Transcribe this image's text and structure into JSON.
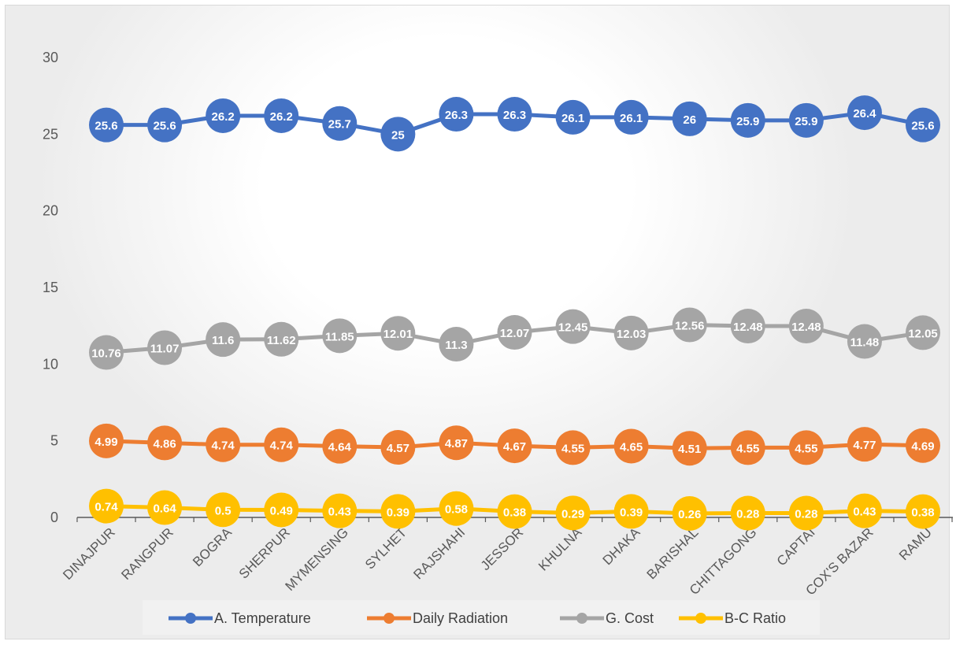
{
  "chart_data": {
    "type": "line",
    "title": "",
    "xlabel": "",
    "ylabel": "",
    "ylim": [
      0,
      30
    ],
    "yticks": [
      0,
      5,
      10,
      15,
      20,
      25,
      30
    ],
    "grid": false,
    "legend_position": "bottom",
    "categories": [
      "DINAJPUR",
      "RANGPUR",
      "BOGRA",
      "SHERPUR",
      "MYMENSING",
      "SYLHET",
      "RAJSHAHI",
      "JESSOR",
      "KHULNA",
      "DHAKA",
      "BARISHAL",
      "CHITTAGONG",
      "CAPTAI",
      "COX'S BAZAR",
      "RAMU"
    ],
    "series": [
      {
        "name": "A. Temperature",
        "color": "#4472C4",
        "labels": [
          "25.6",
          "25.6",
          "26.2",
          "26.2",
          "25.7",
          "25",
          "26.3",
          "26.3",
          "26.1",
          "26.1",
          "26",
          "25.9",
          "25.9",
          "26.4",
          "25.6"
        ],
        "values": [
          25.6,
          25.6,
          26.2,
          26.2,
          25.7,
          25,
          26.3,
          26.3,
          26.1,
          26.1,
          26,
          25.9,
          25.9,
          26.4,
          25.6
        ]
      },
      {
        "name": "Daily Radiation",
        "color": "#ED7D31",
        "labels": [
          "4.99",
          "4.86",
          "4.74",
          "4.74",
          "4.64",
          "4.57",
          "4.87",
          "4.67",
          "4.55",
          "4.65",
          "4.51",
          "4.55",
          "4.55",
          "4.77",
          "4.69"
        ],
        "values": [
          4.99,
          4.86,
          4.74,
          4.74,
          4.64,
          4.57,
          4.87,
          4.67,
          4.55,
          4.65,
          4.51,
          4.55,
          4.55,
          4.77,
          4.69
        ]
      },
      {
        "name": "G. Cost",
        "color": "#A5A5A5",
        "labels": [
          "10.76",
          "11.07",
          "11.6",
          "11.62",
          "11.85",
          "12.01",
          "11.3",
          "12.07",
          "12.45",
          "12.03",
          "12.56",
          "12.48",
          "12.48",
          "11.48",
          "12.05"
        ],
        "values": [
          10.76,
          11.07,
          11.6,
          11.62,
          11.85,
          12.01,
          11.3,
          12.07,
          12.45,
          12.03,
          12.56,
          12.48,
          12.48,
          11.48,
          12.05
        ]
      },
      {
        "name": "B-C Ratio",
        "color": "#FFC000",
        "labels": [
          "0.74",
          "0.64",
          "0.5",
          "0.49",
          "0.43",
          "0.39",
          "0.58",
          "0.38",
          "0.29",
          "0.39",
          "0.26",
          "0.28",
          "0.28",
          "0.43",
          "0.38"
        ],
        "values": [
          0.74,
          0.64,
          0.5,
          0.49,
          0.43,
          0.39,
          0.58,
          0.38,
          0.29,
          0.39,
          0.26,
          0.28,
          0.28,
          0.43,
          0.38
        ]
      }
    ]
  }
}
